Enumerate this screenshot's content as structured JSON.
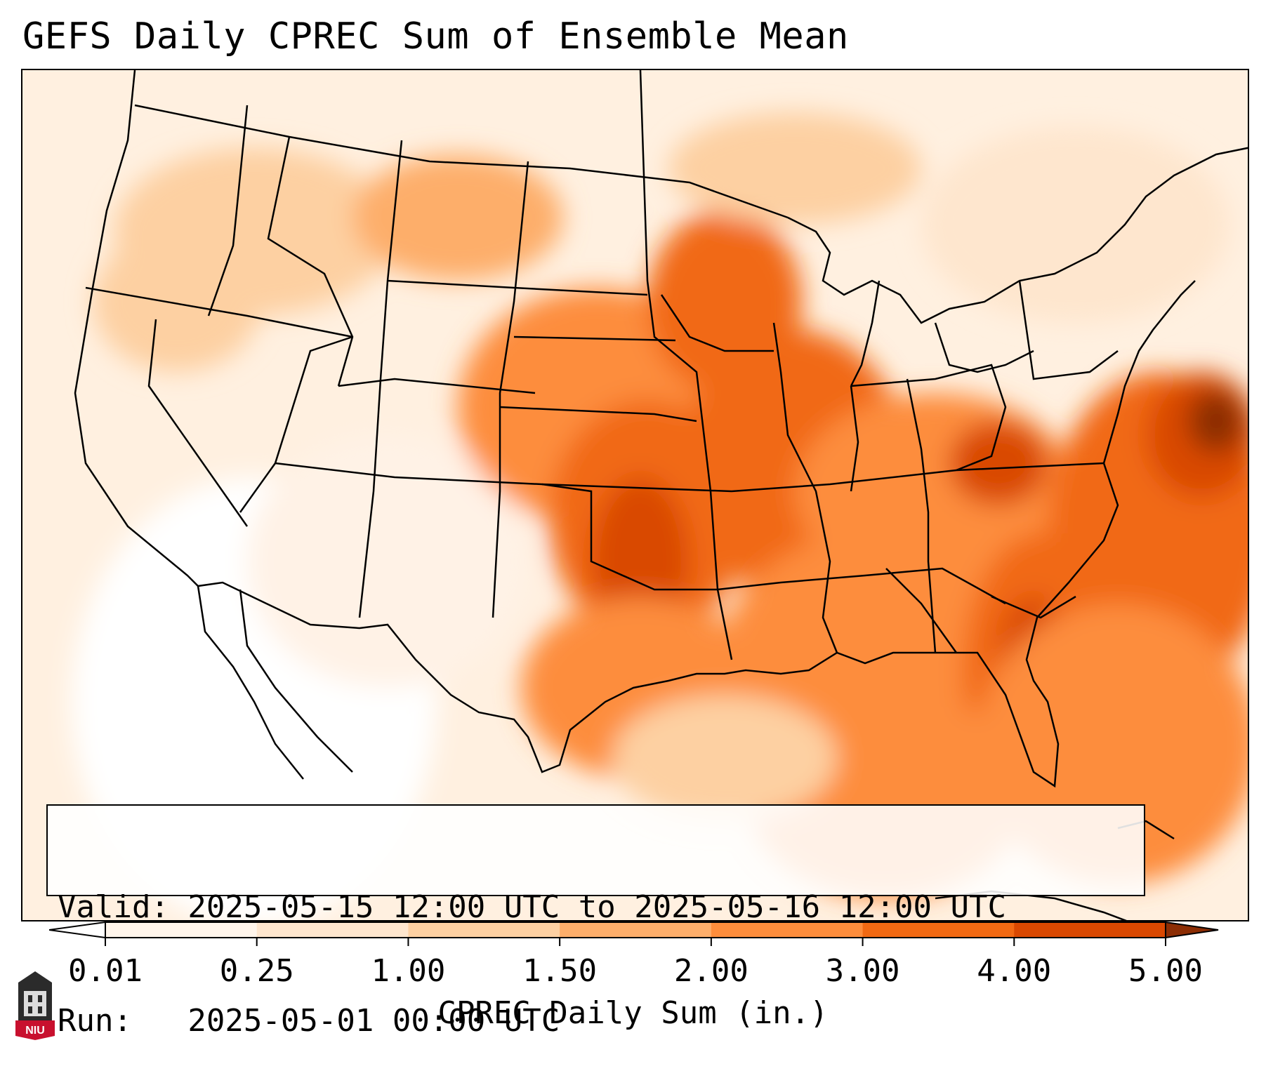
{
  "title": "GEFS Daily CPREC Sum of Ensemble Mean",
  "info": {
    "valid_line": "Valid: 2025-05-15 12:00 UTC to 2025-05-16 12:00 UTC",
    "run_line": "Run:   2025-05-01 00:00 UTC"
  },
  "colorbar": {
    "label": "CPREC Daily Sum (in.)",
    "ticks": [
      "0.01",
      "0.25",
      "1.00",
      "1.50",
      "2.00",
      "3.00",
      "4.00",
      "5.00"
    ],
    "colors": [
      "#fff5eb",
      "#fee6ce",
      "#fdd0a2",
      "#fdae6b",
      "#fd8d3c",
      "#f16913",
      "#d94801",
      "#8c2d04"
    ]
  },
  "logo": {
    "text": "NIU"
  }
}
